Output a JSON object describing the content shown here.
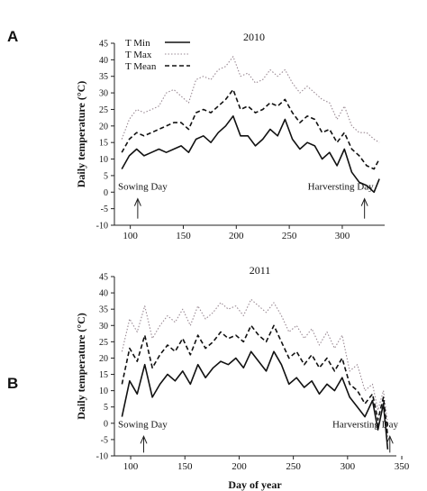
{
  "figure": {
    "xlabel": "Day of year",
    "ylabel": "Daily temperature (°C)",
    "annotations": [
      "Sowing Day",
      "Harversting Day"
    ]
  },
  "legend": {
    "position": "top-left",
    "entries": [
      {
        "label": "T Min",
        "style": "solid"
      },
      {
        "label": "T Max",
        "style": "dotted"
      },
      {
        "label": "T Mean",
        "style": "dashed"
      }
    ]
  },
  "chart_data": [
    {
      "type": "line",
      "panel_letter": "A",
      "title": "2010",
      "xlim": [
        85,
        340
      ],
      "ylim": [
        -10,
        45
      ],
      "xticks": [
        100,
        150,
        200,
        250,
        300
      ],
      "yticks": [
        -10,
        -5,
        0,
        5,
        10,
        15,
        20,
        25,
        30,
        35,
        40,
        45
      ],
      "grid": false,
      "annotations": [
        {
          "text": "Sowing Day",
          "x": 107,
          "arrow_from": -8,
          "arrow_to": -2
        },
        {
          "text": "Harversting Day",
          "x": 321,
          "arrow_from": -8,
          "arrow_to": -2
        }
      ],
      "x": [
        92,
        99,
        106,
        113,
        120,
        127,
        134,
        141,
        148,
        155,
        162,
        169,
        176,
        183,
        190,
        197,
        204,
        211,
        218,
        225,
        232,
        239,
        246,
        253,
        260,
        267,
        274,
        281,
        288,
        295,
        302,
        309,
        316,
        323,
        330,
        335
      ],
      "series": [
        {
          "name": "T Min",
          "values": [
            7,
            11,
            13,
            11,
            12,
            13,
            12,
            13,
            14,
            12,
            16,
            17,
            15,
            18,
            20,
            23,
            17,
            17,
            14,
            16,
            19,
            17,
            22,
            16,
            13,
            15,
            14,
            10,
            12,
            8,
            13,
            6,
            3,
            2,
            0,
            4
          ]
        },
        {
          "name": "T Max",
          "values": [
            16,
            22,
            25,
            24,
            25,
            26,
            30,
            31,
            29,
            27,
            34,
            35,
            34,
            37,
            38,
            41,
            35,
            36,
            33,
            34,
            37,
            35,
            37,
            33,
            30,
            32,
            30,
            28,
            27,
            22,
            26,
            20,
            18,
            18,
            16,
            15
          ]
        },
        {
          "name": "T Mean",
          "values": [
            12,
            16,
            18,
            17,
            18,
            19,
            20,
            21,
            21,
            19,
            24,
            25,
            24,
            26,
            28,
            31,
            25,
            26,
            24,
            25,
            27,
            26,
            28,
            24,
            21,
            23,
            22,
            18,
            19,
            15,
            18,
            13,
            11,
            8,
            7,
            10
          ]
        }
      ]
    },
    {
      "type": "line",
      "panel_letter": "B",
      "title": "2011",
      "xlim": [
        85,
        345
      ],
      "ylim": [
        -10,
        45
      ],
      "xticks": [
        100,
        150,
        200,
        250,
        300,
        350
      ],
      "yticks": [
        -10,
        -5,
        0,
        5,
        10,
        15,
        20,
        25,
        30,
        35,
        40,
        45
      ],
      "grid": false,
      "annotations": [
        {
          "text": "Sowing Day",
          "x": 112,
          "arrow_from": -9,
          "arrow_to": -4
        },
        {
          "text": "Harversting Day",
          "x": 339,
          "arrow_from": -9,
          "arrow_to": -4
        }
      ],
      "x": [
        92,
        99,
        106,
        113,
        120,
        127,
        134,
        141,
        148,
        155,
        162,
        169,
        176,
        183,
        190,
        197,
        204,
        211,
        218,
        225,
        232,
        239,
        246,
        253,
        260,
        267,
        274,
        281,
        288,
        295,
        302,
        309,
        316,
        323,
        328,
        333,
        337
      ],
      "series": [
        {
          "name": "T Min",
          "values": [
            2,
            13,
            9,
            18,
            8,
            12,
            15,
            13,
            16,
            12,
            18,
            14,
            17,
            19,
            18,
            20,
            17,
            22,
            19,
            16,
            22,
            18,
            12,
            14,
            11,
            13,
            9,
            12,
            10,
            14,
            8,
            5,
            2,
            7,
            -2,
            6,
            -8
          ]
        },
        {
          "name": "T Max",
          "values": [
            22,
            32,
            28,
            36,
            26,
            30,
            33,
            31,
            35,
            30,
            36,
            32,
            34,
            37,
            35,
            36,
            33,
            38,
            36,
            34,
            37,
            33,
            28,
            30,
            26,
            29,
            24,
            28,
            23,
            27,
            16,
            18,
            10,
            12,
            4,
            10,
            0
          ]
        },
        {
          "name": "T Mean",
          "values": [
            12,
            23,
            19,
            27,
            17,
            21,
            24,
            22,
            26,
            21,
            27,
            23,
            25,
            28,
            26,
            27,
            25,
            30,
            27,
            25,
            30,
            25,
            20,
            22,
            18,
            21,
            17,
            20,
            16,
            20,
            12,
            10,
            6,
            9,
            1,
            8,
            -4
          ]
        }
      ]
    }
  ]
}
